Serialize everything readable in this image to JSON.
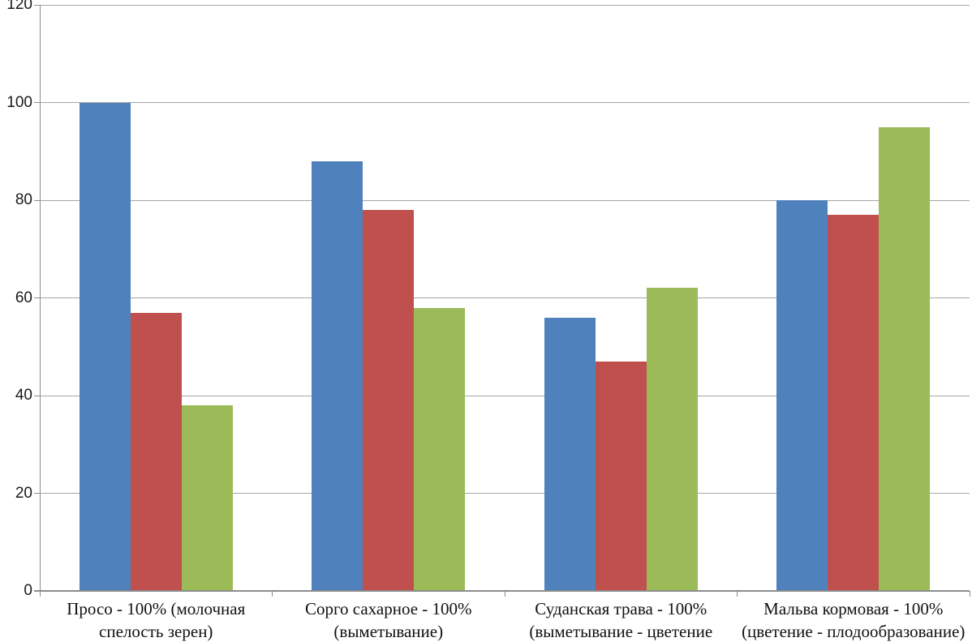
{
  "chart_data": {
    "type": "bar",
    "title": "",
    "xlabel": "",
    "ylabel": "",
    "ylim": [
      0,
      120
    ],
    "yticks": [
      0,
      20,
      40,
      60,
      80,
      100,
      120
    ],
    "grid": true,
    "legend": false,
    "categories": [
      {
        "lines": [
          "Просо - 100% (молочная",
          "спелость зерен)"
        ]
      },
      {
        "lines": [
          "Сорго сахарное - 100%",
          "(выметывание)"
        ]
      },
      {
        "lines": [
          "Суданская трава - 100%",
          "(выметывание - цветение"
        ]
      },
      {
        "lines": [
          "Мальва кормовая - 100%",
          "(цветение - плодообразование)"
        ]
      }
    ],
    "series": [
      {
        "color": "#4F81BD",
        "values": [
          100,
          88,
          56,
          80
        ]
      },
      {
        "color": "#C0504D",
        "values": [
          57,
          78,
          47,
          77
        ]
      },
      {
        "color": "#9BBB59",
        "values": [
          38,
          58,
          62,
          95
        ]
      }
    ]
  }
}
